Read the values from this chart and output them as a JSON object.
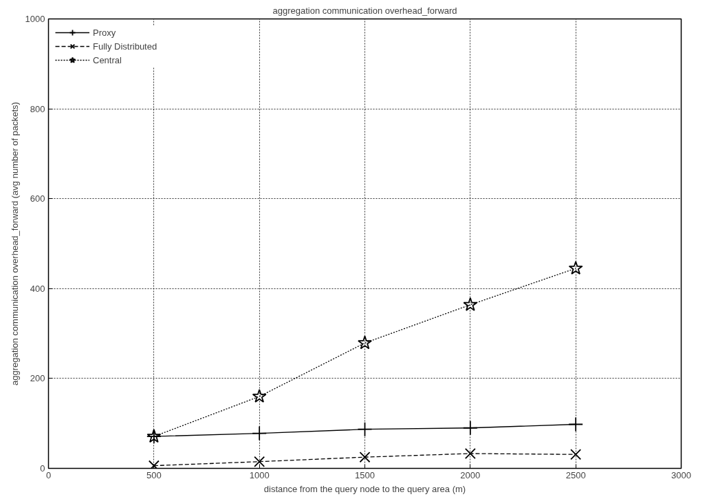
{
  "chart_data": {
    "type": "line",
    "title": "aggregation communication overhead_forward",
    "xlabel": "distance from the query node to the query area (m)",
    "ylabel": "aggregation communication overhead_forward (avg number of packets)",
    "x": [
      500,
      1000,
      1500,
      2000,
      2500
    ],
    "series": [
      {
        "name": "Proxy",
        "color": "#000000",
        "values": [
          71,
          78,
          87,
          90,
          98
        ],
        "marker": "cross",
        "line_style": "solid"
      },
      {
        "name": "Fully Distributed",
        "color": "#000000",
        "values": [
          6,
          15,
          25,
          33,
          31
        ],
        "marker": "x",
        "line_style": "dashed"
      },
      {
        "name": "Central",
        "color": "#000000",
        "values": [
          71,
          160,
          279,
          364,
          445
        ],
        "marker": "star",
        "line_style": "dotted"
      }
    ],
    "xlim": [
      0,
      3000
    ],
    "xticks": [
      0,
      500,
      1000,
      1500,
      2000,
      2500,
      3000
    ],
    "ylim": [
      0,
      1000
    ],
    "yticks": [
      0,
      200,
      400,
      600,
      800,
      1000
    ],
    "grid": true,
    "legend": "top left"
  }
}
